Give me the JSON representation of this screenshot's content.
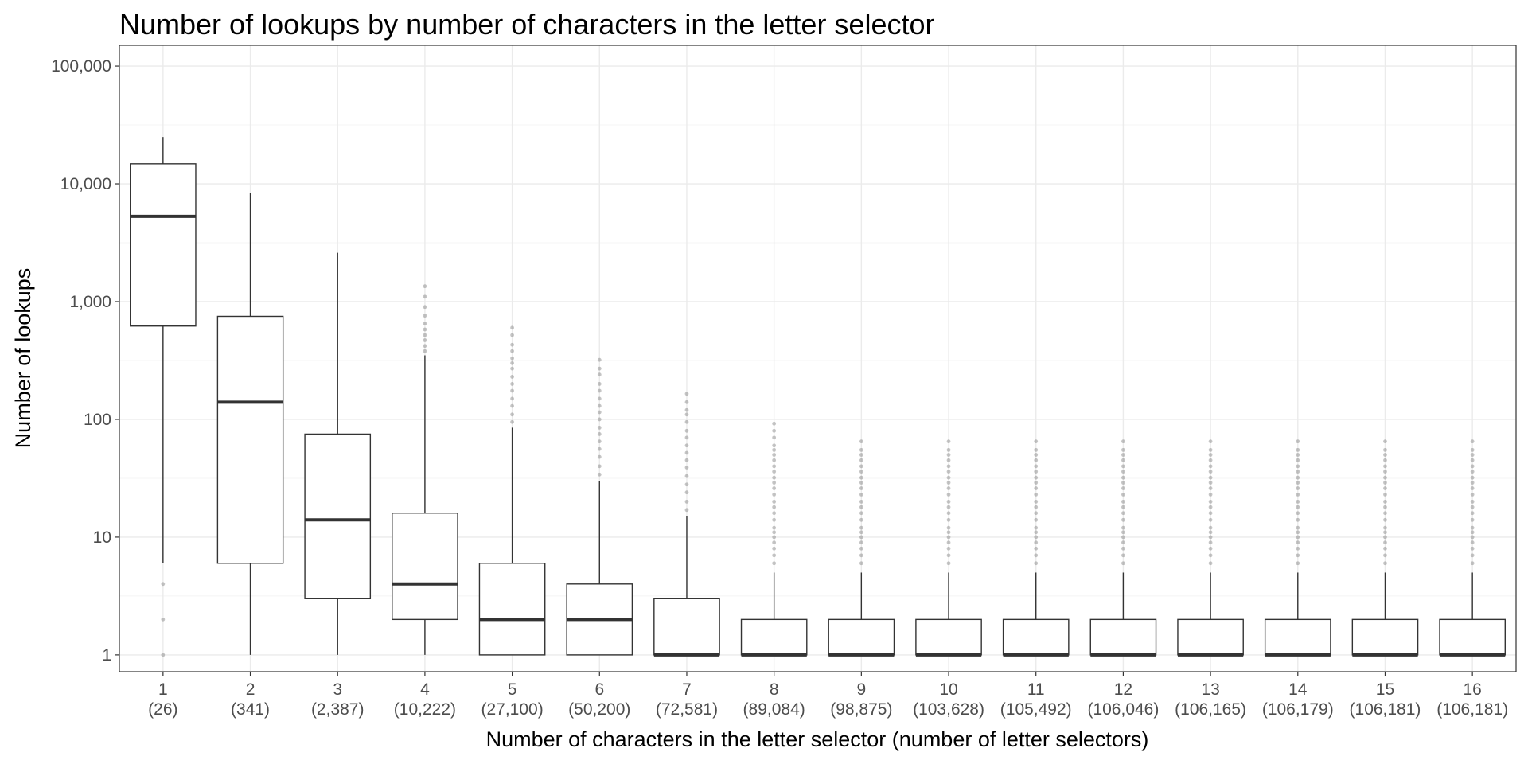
{
  "chart_data": {
    "type": "boxplot",
    "title": "Number of lookups by number of characters in the letter selector",
    "xlabel": "Number of characters in the letter selector (number of letter selectors)",
    "ylabel": "Number of lookups",
    "yscale": "log10",
    "ylim": [
      0.72,
      150000
    ],
    "yticks": [
      1,
      10,
      100,
      1000,
      10000,
      100000
    ],
    "ytick_labels": [
      "1",
      "10",
      "100",
      "1,000",
      "10,000",
      "100,000"
    ],
    "grid": true,
    "categories": [
      "1",
      "2",
      "3",
      "4",
      "5",
      "6",
      "7",
      "8",
      "9",
      "10",
      "11",
      "12",
      "13",
      "14",
      "15",
      "16"
    ],
    "category_counts": [
      "(26)",
      "(341)",
      "(2,387)",
      "(10,222)",
      "(27,100)",
      "(50,200)",
      "(72,581)",
      "(89,084)",
      "(98,875)",
      "(103,628)",
      "(105,492)",
      "(106,046)",
      "(106,165)",
      "(106,179)",
      "(106,181)",
      "(106,181)"
    ],
    "boxes": [
      {
        "x": "1",
        "whisker_low": 6,
        "q1": 620,
        "median": 5300,
        "q3": 14800,
        "whisker_high": 25000,
        "outliers": [
          1,
          2,
          4
        ]
      },
      {
        "x": "2",
        "whisker_low": 1,
        "q1": 6,
        "median": 140,
        "q3": 750,
        "whisker_high": 8300,
        "outliers": []
      },
      {
        "x": "3",
        "whisker_low": 1,
        "q1": 3,
        "median": 14,
        "q3": 75,
        "whisker_high": 2600,
        "outliers": []
      },
      {
        "x": "4",
        "whisker_low": 1,
        "q1": 2,
        "median": 4,
        "q3": 16,
        "whisker_high": 350,
        "outliers": [
          380,
          420,
          470,
          520,
          580,
          650,
          760,
          900,
          1100,
          1350
        ]
      },
      {
        "x": "5",
        "whisker_low": 1,
        "q1": 1,
        "median": 2,
        "q3": 6,
        "whisker_high": 85,
        "outliers": [
          95,
          110,
          130,
          150,
          175,
          200,
          230,
          270,
          300,
          330,
          380,
          430,
          520,
          600
        ]
      },
      {
        "x": "6",
        "whisker_low": 1,
        "q1": 1,
        "median": 2,
        "q3": 4,
        "whisker_high": 30,
        "outliers": [
          34,
          40,
          48,
          56,
          65,
          75,
          85,
          100,
          115,
          130,
          150,
          175,
          200,
          240,
          270,
          320
        ]
      },
      {
        "x": "7",
        "whisker_low": 1,
        "q1": 1,
        "median": 1,
        "q3": 3,
        "whisker_high": 15,
        "outliers": [
          17,
          20,
          24,
          28,
          33,
          39,
          45,
          52,
          60,
          70,
          80,
          95,
          110,
          120,
          140,
          165
        ]
      },
      {
        "x": "8",
        "whisker_low": 1,
        "q1": 1,
        "median": 1,
        "q3": 2,
        "whisker_high": 5,
        "outliers": [
          6,
          7,
          8,
          9,
          10,
          11,
          12,
          14,
          16,
          18,
          20,
          23,
          26,
          29,
          32,
          36,
          40,
          45,
          50,
          55,
          60,
          70,
          80,
          92
        ]
      },
      {
        "x": "9",
        "whisker_low": 1,
        "q1": 1,
        "median": 1,
        "q3": 2,
        "whisker_high": 5,
        "outliers": [
          6,
          7,
          8,
          9,
          10,
          11,
          12,
          14,
          16,
          18,
          20,
          23,
          26,
          29,
          32,
          36,
          40,
          45,
          50,
          55,
          65
        ]
      },
      {
        "x": "10",
        "whisker_low": 1,
        "q1": 1,
        "median": 1,
        "q3": 2,
        "whisker_high": 5,
        "outliers": [
          6,
          7,
          8,
          9,
          10,
          11,
          12,
          14,
          16,
          18,
          20,
          23,
          26,
          29,
          32,
          36,
          40,
          45,
          50,
          55,
          65
        ]
      },
      {
        "x": "11",
        "whisker_low": 1,
        "q1": 1,
        "median": 1,
        "q3": 2,
        "whisker_high": 5,
        "outliers": [
          6,
          7,
          8,
          9,
          10,
          11,
          12,
          14,
          16,
          18,
          20,
          23,
          26,
          29,
          32,
          36,
          40,
          45,
          50,
          55,
          65
        ]
      },
      {
        "x": "12",
        "whisker_low": 1,
        "q1": 1,
        "median": 1,
        "q3": 2,
        "whisker_high": 5,
        "outliers": [
          6,
          7,
          8,
          9,
          10,
          11,
          12,
          14,
          16,
          18,
          20,
          23,
          26,
          29,
          32,
          36,
          40,
          45,
          50,
          55,
          65
        ]
      },
      {
        "x": "13",
        "whisker_low": 1,
        "q1": 1,
        "median": 1,
        "q3": 2,
        "whisker_high": 5,
        "outliers": [
          6,
          7,
          8,
          9,
          10,
          11,
          12,
          14,
          16,
          18,
          20,
          23,
          26,
          29,
          32,
          36,
          40,
          45,
          50,
          55,
          65
        ]
      },
      {
        "x": "14",
        "whisker_low": 1,
        "q1": 1,
        "median": 1,
        "q3": 2,
        "whisker_high": 5,
        "outliers": [
          6,
          7,
          8,
          9,
          10,
          11,
          12,
          14,
          16,
          18,
          20,
          23,
          26,
          29,
          32,
          36,
          40,
          45,
          50,
          55,
          65
        ]
      },
      {
        "x": "15",
        "whisker_low": 1,
        "q1": 1,
        "median": 1,
        "q3": 2,
        "whisker_high": 5,
        "outliers": [
          6,
          7,
          8,
          9,
          10,
          11,
          12,
          14,
          16,
          18,
          20,
          23,
          26,
          29,
          32,
          36,
          40,
          45,
          50,
          55,
          65
        ]
      },
      {
        "x": "16",
        "whisker_low": 1,
        "q1": 1,
        "median": 1,
        "q3": 2,
        "whisker_high": 5,
        "outliers": [
          6,
          7,
          8,
          9,
          10,
          11,
          12,
          14,
          16,
          18,
          20,
          23,
          26,
          29,
          32,
          36,
          40,
          45,
          50,
          55,
          65
        ]
      }
    ],
    "colors": {
      "box_line": "#333333",
      "grid": "#ebebeb",
      "outlier": "#7f7f7f",
      "panel_border": "#333333"
    }
  }
}
